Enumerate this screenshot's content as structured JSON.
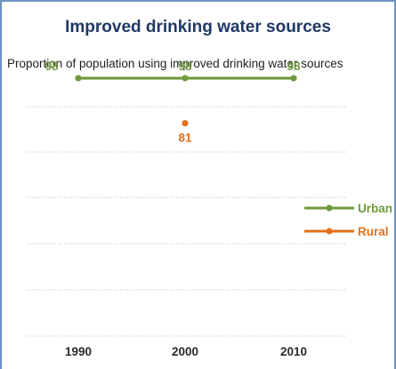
{
  "chart_data": {
    "type": "line",
    "title": "Improved drinking water sources",
    "subtitle": "Proportion of population using improved drinking water sources",
    "x": [
      1990,
      2000,
      2010
    ],
    "ylim": [
      0,
      100
    ],
    "grid": true,
    "legend_position": "right",
    "series": [
      {
        "name": "Urban",
        "color": "#6f9a3d",
        "values": [
          98,
          98,
          98
        ],
        "labels": [
          "98",
          "98",
          "98"
        ]
      },
      {
        "name": "Rural",
        "color": "#e0711c",
        "values": [
          null,
          81,
          null
        ],
        "labels": [
          "",
          "81",
          ""
        ]
      }
    ],
    "x_tick_labels": [
      "1990",
      "2000",
      "2010"
    ]
  }
}
